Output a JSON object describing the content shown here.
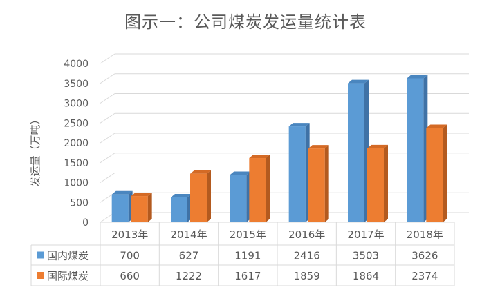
{
  "chart_data": {
    "type": "bar",
    "title": "图示一：公司煤炭发运量统计表",
    "ylabel": "发运量（万吨）",
    "ylim": [
      0,
      4000
    ],
    "yticks": [
      0,
      500,
      1000,
      1500,
      2000,
      2500,
      3000,
      3500,
      4000
    ],
    "categories": [
      "2013年",
      "2014年",
      "2015年",
      "2016年",
      "2017年",
      "2018年"
    ],
    "series": [
      {
        "name": "国内煤炭",
        "color": "#5b9bd5",
        "side": "#3f72a6",
        "top": "#4a86bf",
        "values": [
          700,
          627,
          1191,
          2416,
          3503,
          3626
        ]
      },
      {
        "name": "国际煤炭",
        "color": "#ed7d31",
        "side": "#b35a1f",
        "top": "#d46a25",
        "values": [
          660,
          1222,
          1617,
          1859,
          1864,
          2374
        ]
      }
    ],
    "grid": true,
    "legend": "data table"
  }
}
